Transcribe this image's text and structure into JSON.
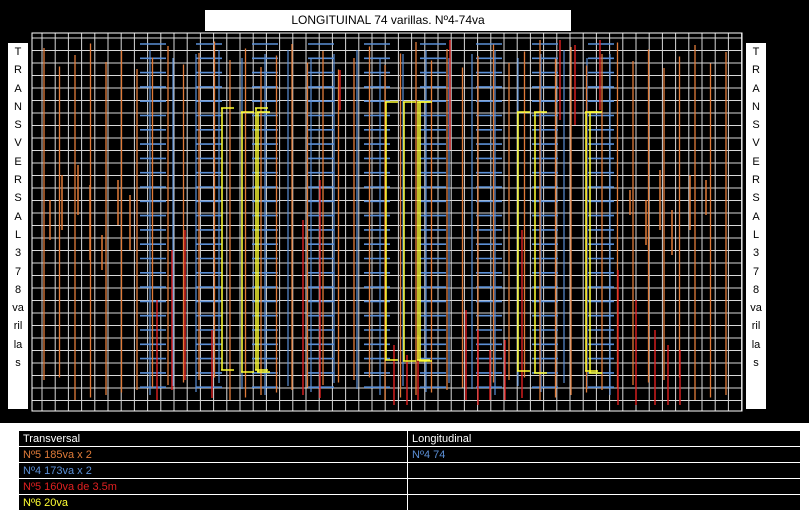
{
  "title": "LONGITUINAL 74 varillas. Nº4-74va",
  "side_label": [
    "T",
    "R",
    "A",
    "N",
    "S",
    "V",
    "E",
    "R",
    "S",
    "A",
    "L",
    "3",
    "7",
    "8",
    "va",
    "ril",
    "la",
    "s"
  ],
  "legend": {
    "col1_header": "Transversal",
    "col2_header": "Longitudinal",
    "rows": [
      {
        "left": "Nº5 185va x 2",
        "left_color": "#e07b39",
        "right": "Nº4 74",
        "right_color": "#5b8fd6"
      },
      {
        "left": "Nº4 173va x 2",
        "left_color": "#5b8fd6",
        "right": "",
        "right_color": "#ffffff"
      },
      {
        "left": "Nº5 160va de 3.5m",
        "left_color": "#e02020",
        "right": "",
        "right_color": "#ffffff"
      },
      {
        "left": "Nº6 20va",
        "left_color": "#ffff33",
        "right": "",
        "right_color": "#ffffff"
      }
    ]
  },
  "colors": {
    "frame": "#ffffff",
    "grid_white": "#d8d8d8",
    "orange": "#e07b39",
    "blue": "#5b8fd6",
    "red": "#e02020",
    "yellow": "#ffff33"
  }
}
